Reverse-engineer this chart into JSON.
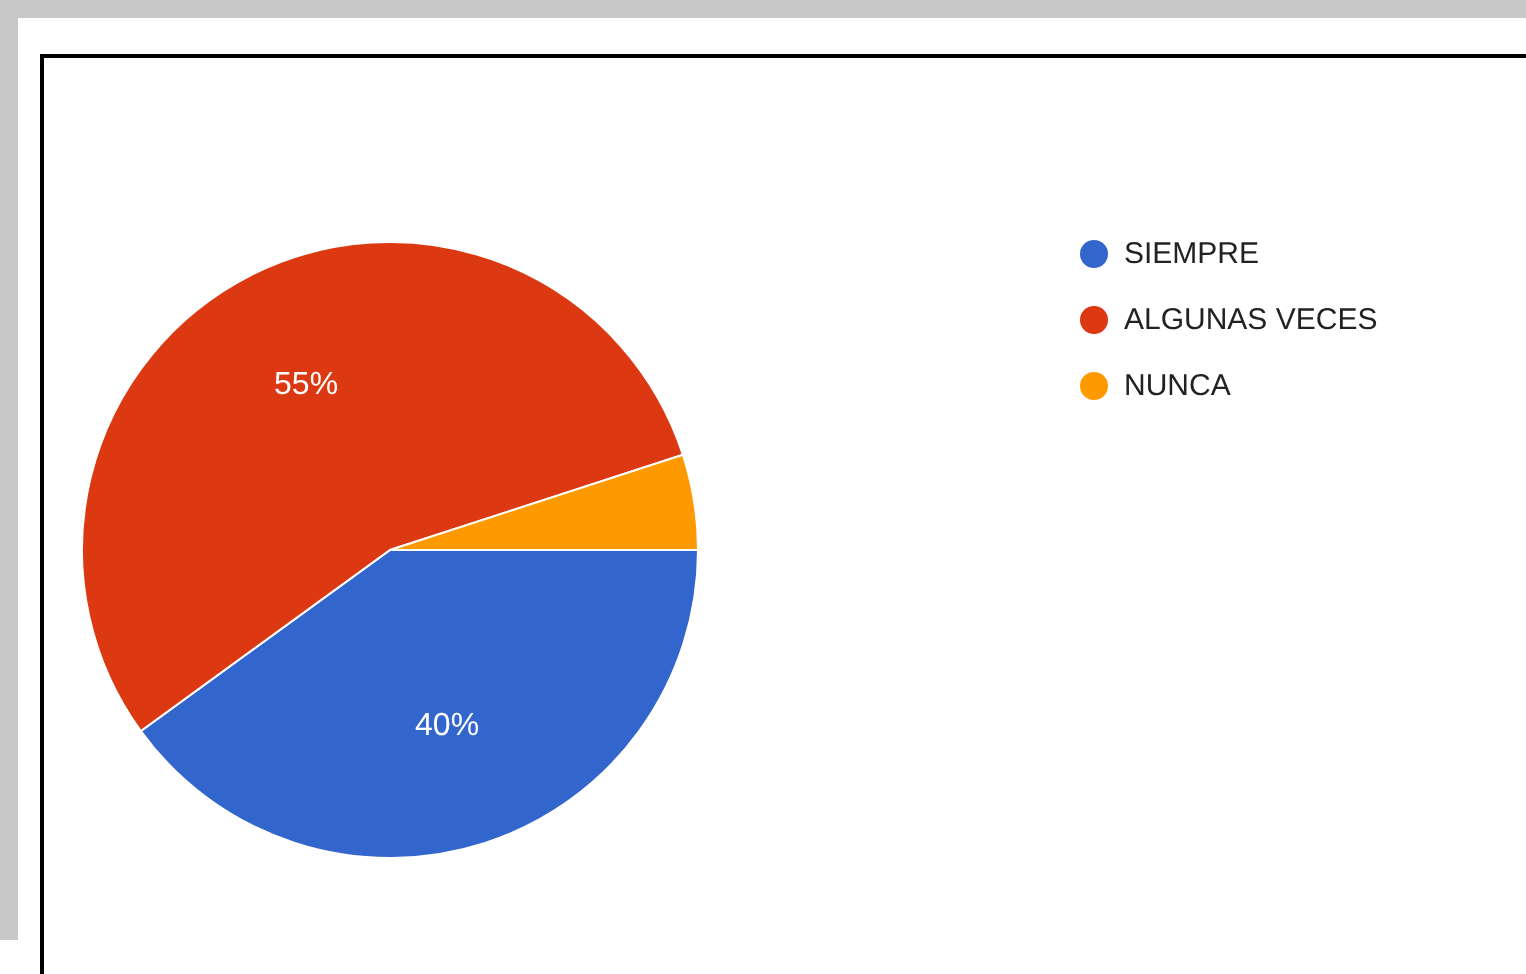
{
  "chart_data": {
    "type": "pie",
    "categories": [
      "SIEMPRE",
      "ALGUNAS VECES",
      "NUNCA"
    ],
    "values": [
      40,
      55,
      5
    ],
    "colors": [
      "#3366cc",
      "#dc3912",
      "#ff9900"
    ],
    "value_labels": [
      "40%",
      "55%",
      null
    ],
    "legend": "top right"
  }
}
